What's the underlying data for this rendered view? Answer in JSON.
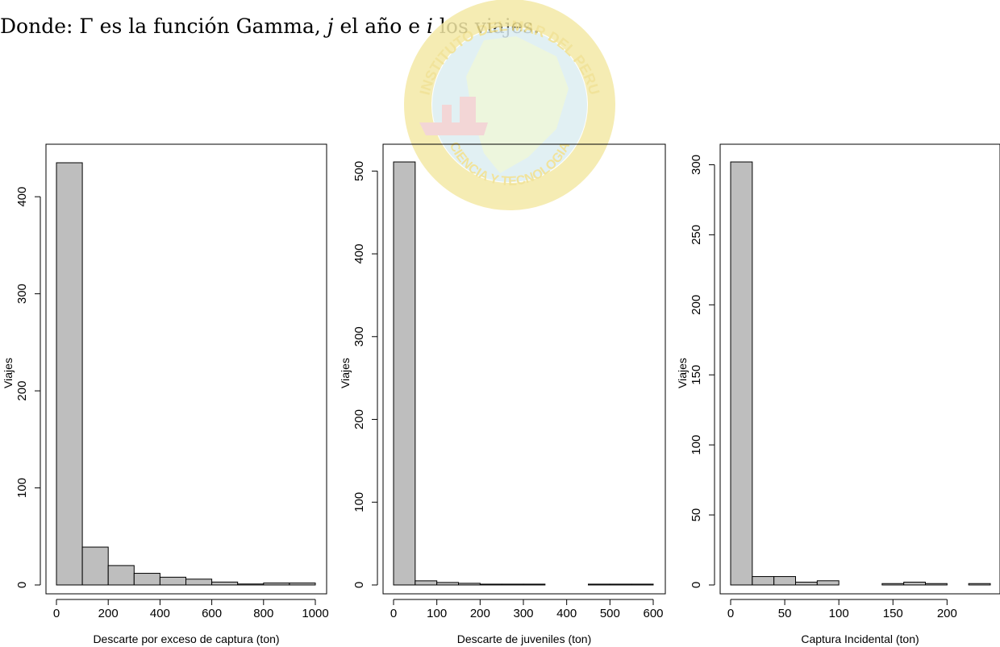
{
  "document": {
    "text_before_gamma": "Donde: ",
    "gamma_symbol": "Γ",
    "text_mid_1": " es la función Gamma, ",
    "var_j": "j",
    "text_mid_2": " el año e ",
    "var_i": "i",
    "text_end": " los viajes."
  },
  "watermark": {
    "text_top": "INSTITUTO DEL MAR DEL PERU",
    "text_bottom": "CIENCIA Y TECNOLOGIA",
    "colors": {
      "ring": "#f4e9a6",
      "map": "#dceef2",
      "ship": "#f2cfcf"
    }
  },
  "colors": {
    "bar_fill": "#bebebe",
    "bar_stroke": "#000000",
    "axis": "#000000"
  },
  "chart_data": [
    {
      "type": "bar",
      "xlabel": "Descarte por exceso de captura (ton)",
      "ylabel": "Viajes",
      "bin_edges": [
        0,
        100,
        200,
        300,
        400,
        500,
        600,
        700,
        800,
        900,
        1000
      ],
      "values": [
        435,
        39,
        20,
        12,
        8,
        6,
        3,
        1,
        2,
        2
      ],
      "xlim": [
        0,
        1000
      ],
      "ylim": [
        0,
        435
      ],
      "xticks": [
        0,
        200,
        400,
        600,
        800,
        1000
      ],
      "yticks": [
        0,
        100,
        200,
        300,
        400
      ],
      "grid": false
    },
    {
      "type": "bar",
      "xlabel": "Descarte de juveniles (ton)",
      "ylabel": "Viajes",
      "bin_edges": [
        0,
        50,
        100,
        150,
        200,
        250,
        300,
        350,
        400,
        450,
        500,
        550,
        600
      ],
      "values": [
        511,
        5,
        3,
        2,
        1,
        1,
        1,
        0,
        0,
        1,
        1,
        1
      ],
      "xlim": [
        0,
        600
      ],
      "ylim": [
        0,
        511
      ],
      "xticks": [
        0,
        100,
        200,
        300,
        400,
        500,
        600
      ],
      "yticks": [
        0,
        100,
        200,
        300,
        400,
        500
      ],
      "grid": false
    },
    {
      "type": "bar",
      "xlabel": "Captura Incidental (ton)",
      "ylabel": "Viajes",
      "bin_edges": [
        0,
        20,
        40,
        60,
        80,
        100,
        120,
        140,
        160,
        180,
        200,
        220,
        240
      ],
      "values": [
        302,
        6,
        6,
        2,
        3,
        0,
        0,
        1,
        2,
        1,
        0,
        1
      ],
      "xlim": [
        0,
        240
      ],
      "ylim": [
        0,
        302
      ],
      "xticks": [
        0,
        50,
        100,
        150,
        200
      ],
      "yticks": [
        0,
        50,
        100,
        150,
        200,
        250,
        300
      ],
      "grid": false
    }
  ]
}
